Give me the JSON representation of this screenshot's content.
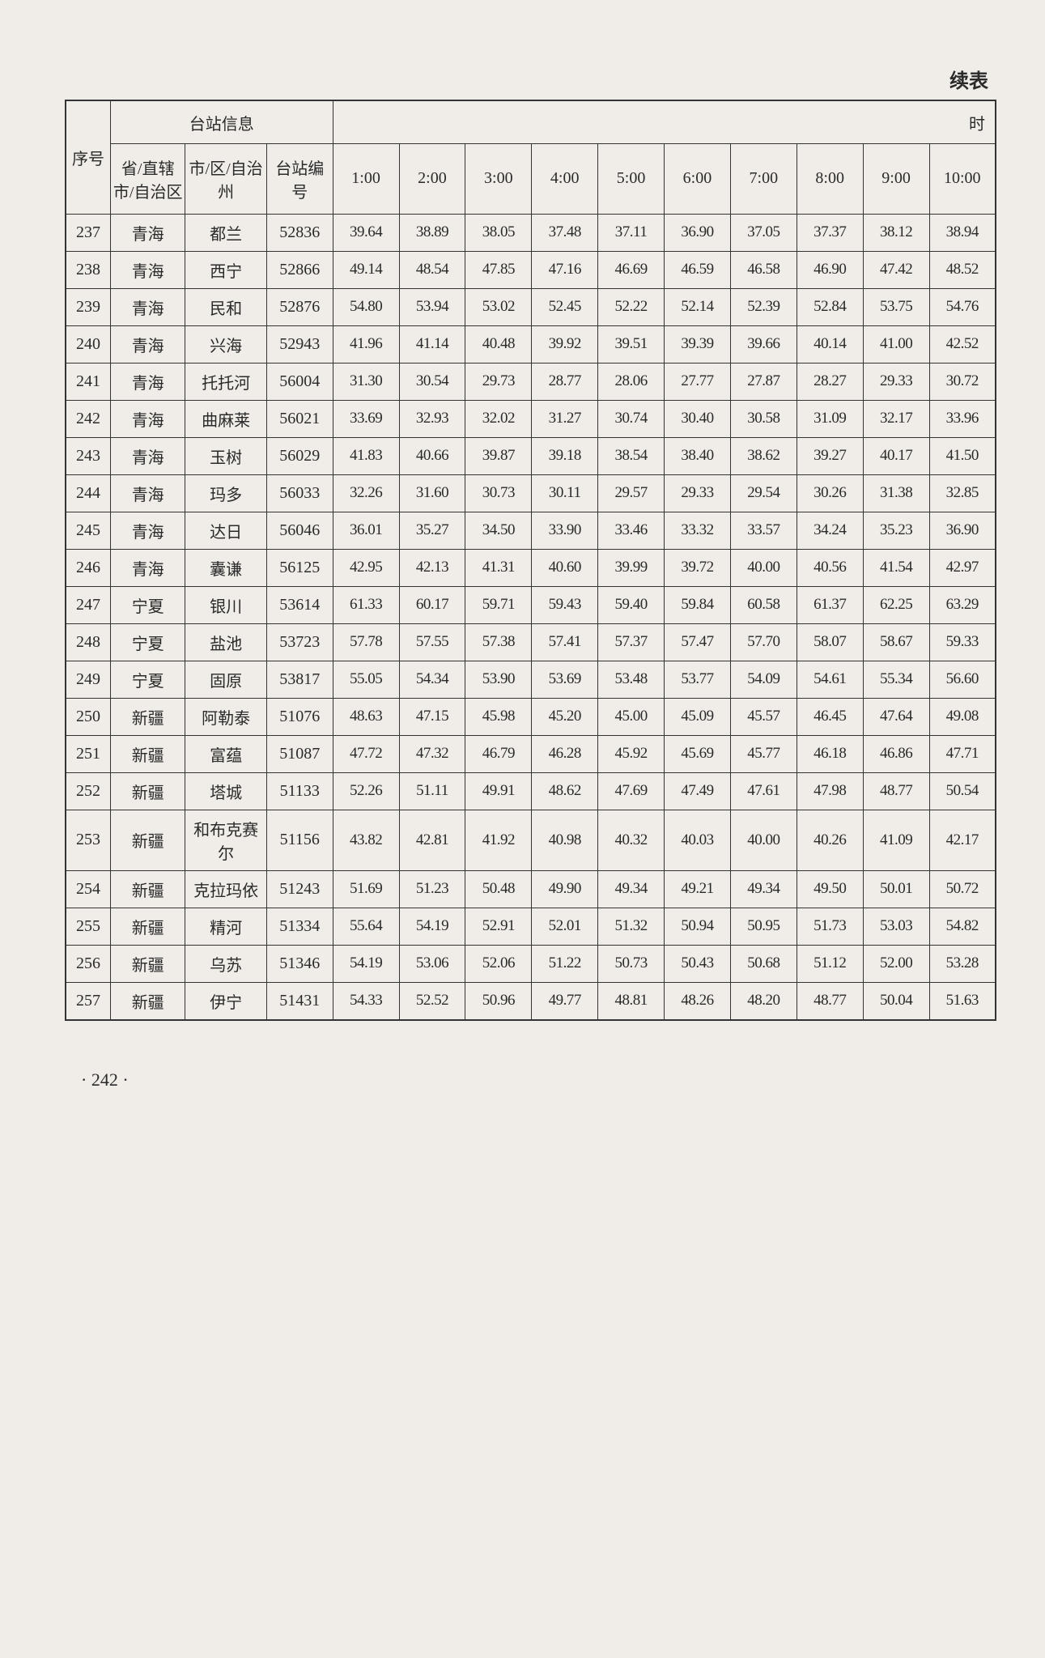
{
  "continued_label": "续表",
  "page_number": "· 242 ·",
  "headers": {
    "station_info": "台站信息",
    "time": "时",
    "seq": "序号",
    "province": "省/直辖市/自治区",
    "city": "市/区/自治州",
    "station_code": "台站编号",
    "times": [
      "1:00",
      "2:00",
      "3:00",
      "4:00",
      "5:00",
      "6:00",
      "7:00",
      "8:00",
      "9:00",
      "10:00"
    ]
  },
  "rows": [
    {
      "seq": "237",
      "prov": "青海",
      "city": "都兰",
      "code": "52836",
      "v": [
        "39.64",
        "38.89",
        "38.05",
        "37.48",
        "37.11",
        "36.90",
        "37.05",
        "37.37",
        "38.12",
        "38.94"
      ]
    },
    {
      "seq": "238",
      "prov": "青海",
      "city": "西宁",
      "code": "52866",
      "v": [
        "49.14",
        "48.54",
        "47.85",
        "47.16",
        "46.69",
        "46.59",
        "46.58",
        "46.90",
        "47.42",
        "48.52"
      ]
    },
    {
      "seq": "239",
      "prov": "青海",
      "city": "民和",
      "code": "52876",
      "v": [
        "54.80",
        "53.94",
        "53.02",
        "52.45",
        "52.22",
        "52.14",
        "52.39",
        "52.84",
        "53.75",
        "54.76"
      ]
    },
    {
      "seq": "240",
      "prov": "青海",
      "city": "兴海",
      "code": "52943",
      "v": [
        "41.96",
        "41.14",
        "40.48",
        "39.92",
        "39.51",
        "39.39",
        "39.66",
        "40.14",
        "41.00",
        "42.52"
      ]
    },
    {
      "seq": "241",
      "prov": "青海",
      "city": "托托河",
      "code": "56004",
      "v": [
        "31.30",
        "30.54",
        "29.73",
        "28.77",
        "28.06",
        "27.77",
        "27.87",
        "28.27",
        "29.33",
        "30.72"
      ]
    },
    {
      "seq": "242",
      "prov": "青海",
      "city": "曲麻莱",
      "code": "56021",
      "v": [
        "33.69",
        "32.93",
        "32.02",
        "31.27",
        "30.74",
        "30.40",
        "30.58",
        "31.09",
        "32.17",
        "33.96"
      ]
    },
    {
      "seq": "243",
      "prov": "青海",
      "city": "玉树",
      "code": "56029",
      "v": [
        "41.83",
        "40.66",
        "39.87",
        "39.18",
        "38.54",
        "38.40",
        "38.62",
        "39.27",
        "40.17",
        "41.50"
      ]
    },
    {
      "seq": "244",
      "prov": "青海",
      "city": "玛多",
      "code": "56033",
      "v": [
        "32.26",
        "31.60",
        "30.73",
        "30.11",
        "29.57",
        "29.33",
        "29.54",
        "30.26",
        "31.38",
        "32.85"
      ]
    },
    {
      "seq": "245",
      "prov": "青海",
      "city": "达日",
      "code": "56046",
      "v": [
        "36.01",
        "35.27",
        "34.50",
        "33.90",
        "33.46",
        "33.32",
        "33.57",
        "34.24",
        "35.23",
        "36.90"
      ]
    },
    {
      "seq": "246",
      "prov": "青海",
      "city": "囊谦",
      "code": "56125",
      "v": [
        "42.95",
        "42.13",
        "41.31",
        "40.60",
        "39.99",
        "39.72",
        "40.00",
        "40.56",
        "41.54",
        "42.97"
      ]
    },
    {
      "seq": "247",
      "prov": "宁夏",
      "city": "银川",
      "code": "53614",
      "v": [
        "61.33",
        "60.17",
        "59.71",
        "59.43",
        "59.40",
        "59.84",
        "60.58",
        "61.37",
        "62.25",
        "63.29"
      ]
    },
    {
      "seq": "248",
      "prov": "宁夏",
      "city": "盐池",
      "code": "53723",
      "v": [
        "57.78",
        "57.55",
        "57.38",
        "57.41",
        "57.37",
        "57.47",
        "57.70",
        "58.07",
        "58.67",
        "59.33"
      ]
    },
    {
      "seq": "249",
      "prov": "宁夏",
      "city": "固原",
      "code": "53817",
      "v": [
        "55.05",
        "54.34",
        "53.90",
        "53.69",
        "53.48",
        "53.77",
        "54.09",
        "54.61",
        "55.34",
        "56.60"
      ]
    },
    {
      "seq": "250",
      "prov": "新疆",
      "city": "阿勒泰",
      "code": "51076",
      "v": [
        "48.63",
        "47.15",
        "45.98",
        "45.20",
        "45.00",
        "45.09",
        "45.57",
        "46.45",
        "47.64",
        "49.08"
      ]
    },
    {
      "seq": "251",
      "prov": "新疆",
      "city": "富蕴",
      "code": "51087",
      "v": [
        "47.72",
        "47.32",
        "46.79",
        "46.28",
        "45.92",
        "45.69",
        "45.77",
        "46.18",
        "46.86",
        "47.71"
      ]
    },
    {
      "seq": "252",
      "prov": "新疆",
      "city": "塔城",
      "code": "51133",
      "v": [
        "52.26",
        "51.11",
        "49.91",
        "48.62",
        "47.69",
        "47.49",
        "47.61",
        "47.98",
        "48.77",
        "50.54"
      ]
    },
    {
      "seq": "253",
      "prov": "新疆",
      "city": "和布克赛尔",
      "code": "51156",
      "v": [
        "43.82",
        "42.81",
        "41.92",
        "40.98",
        "40.32",
        "40.03",
        "40.00",
        "40.26",
        "41.09",
        "42.17"
      ]
    },
    {
      "seq": "254",
      "prov": "新疆",
      "city": "克拉玛依",
      "code": "51243",
      "v": [
        "51.69",
        "51.23",
        "50.48",
        "49.90",
        "49.34",
        "49.21",
        "49.34",
        "49.50",
        "50.01",
        "50.72"
      ]
    },
    {
      "seq": "255",
      "prov": "新疆",
      "city": "精河",
      "code": "51334",
      "v": [
        "55.64",
        "54.19",
        "52.91",
        "52.01",
        "51.32",
        "50.94",
        "50.95",
        "51.73",
        "53.03",
        "54.82"
      ]
    },
    {
      "seq": "256",
      "prov": "新疆",
      "city": "乌苏",
      "code": "51346",
      "v": [
        "54.19",
        "53.06",
        "52.06",
        "51.22",
        "50.73",
        "50.43",
        "50.68",
        "51.12",
        "52.00",
        "53.28"
      ]
    },
    {
      "seq": "257",
      "prov": "新疆",
      "city": "伊宁",
      "code": "51431",
      "v": [
        "54.33",
        "52.52",
        "50.96",
        "49.77",
        "48.81",
        "48.26",
        "48.20",
        "48.77",
        "50.04",
        "51.63"
      ]
    }
  ]
}
